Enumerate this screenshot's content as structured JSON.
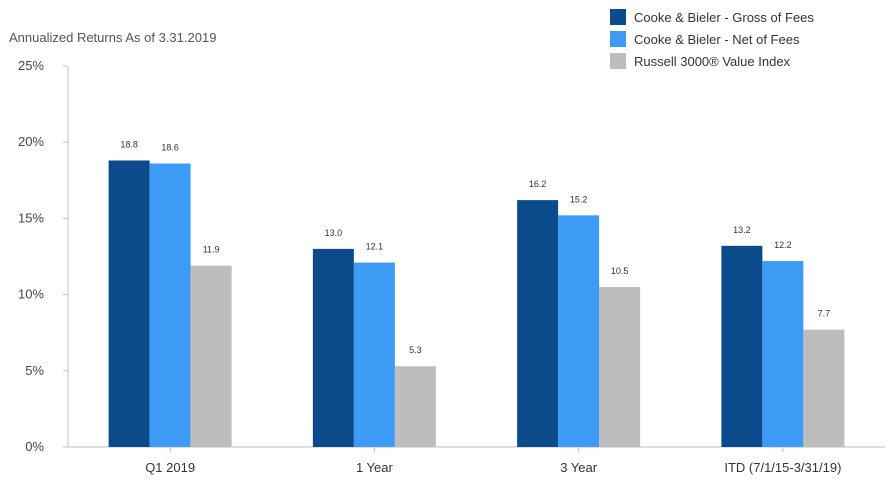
{
  "chart_data": {
    "type": "bar",
    "title": "Annualized Returns As of 3.31.2019",
    "categories": [
      "Q1 2019",
      "1 Year",
      "3 Year",
      "ITD (7/1/15-3/31/19)"
    ],
    "series": [
      {
        "name": "Cooke & Bieler - Gross of Fees",
        "color": "#0b4a8b",
        "values": [
          18.8,
          13.0,
          16.2,
          13.2
        ],
        "labels": [
          "18.8",
          "13.0",
          "16.2",
          "13.2"
        ]
      },
      {
        "name": "Cooke & Bieler - Net of Fees",
        "color": "#3d9bf5",
        "values": [
          18.6,
          12.1,
          15.2,
          12.2
        ],
        "labels": [
          "18.6",
          "12.1",
          "15.2",
          "12.2"
        ]
      },
      {
        "name": "Russell 3000® Value Index",
        "color": "#bdbdbd",
        "values": [
          11.9,
          5.3,
          10.5,
          7.7
        ],
        "labels": [
          "11.9",
          "5.3",
          "10.5",
          "7.7"
        ]
      }
    ],
    "ylim": [
      0,
      25
    ],
    "yticks": [
      0,
      5,
      10,
      15,
      20,
      25
    ],
    "ytick_labels": [
      "0%",
      "5%",
      "10%",
      "15%",
      "20%",
      "25%"
    ],
    "grid": false,
    "legend_position": "top-right"
  }
}
